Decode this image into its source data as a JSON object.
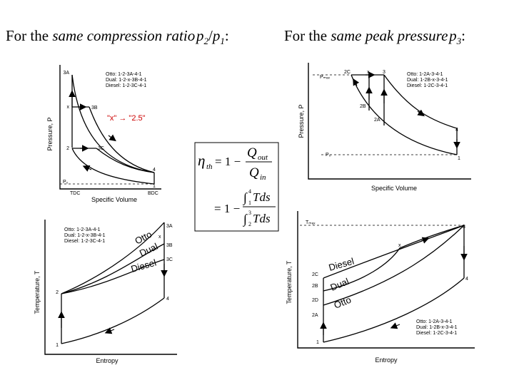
{
  "headings": {
    "left": {
      "prefix": "For the ",
      "italic": "same compression ratio",
      "var1": "p",
      "sub1": "2",
      "slash": "/",
      "var2": "p",
      "sub2": "1",
      "suffix": ":"
    },
    "right": {
      "prefix": "For the ",
      "italic": "same peak pressure",
      "var": "p",
      "sub": "3",
      "suffix": ":"
    }
  },
  "pv_compression": {
    "ylabel": "Pressure, P",
    "xlabel": "Specific Volume",
    "legend": [
      "Otto: 1-2-3A-4-1",
      "Dual: 1-2-x-3B-4-1",
      "Diesel: 1-2-3C-4-1"
    ],
    "annotation": "\"x\" → \"2.5\"",
    "points": {
      "p3A": "3A",
      "px": "x",
      "p3B": "3B",
      "p2": "2",
      "p3C": "3C",
      "p4": "4",
      "p1": "1"
    },
    "po": "P₀",
    "tdc": "TDC",
    "bdc": "BDC"
  },
  "ts_compression": {
    "ylabel": "Temperature, T",
    "xlabel": "Entropy",
    "legend": [
      "Otto: 1-2-3A-4-1",
      "Dual: 1-2-x-3B-4-1",
      "Diesel: 1-2-3C-4-1"
    ],
    "curve_labels": {
      "otto": "Otto",
      "dual": "Dual",
      "diesel": "Diesel"
    },
    "points": {
      "p3A": "3A",
      "px": "x",
      "p3B": "3B",
      "p3C": "3C",
      "p2": "2",
      "p4": "4",
      "p1": "1"
    }
  },
  "pv_peak": {
    "ylabel": "Pressure, P",
    "xlabel": "Specific Volume",
    "pmax": "Pₘₐₓ",
    "po": "P₀",
    "legend": [
      "Otto: 1-2A-3-4-1",
      "Dual: 1-2B-x-3-4-1",
      "Diesel: 1-2C-3-4-1"
    ],
    "points": {
      "p2C": "2C",
      "px": "x",
      "p3": "3",
      "p2B": "2B",
      "p2A": "2A",
      "p4": "4",
      "p1": "1"
    }
  },
  "ts_peak": {
    "ylabel": "Temperature, T",
    "xlabel": "Entropy",
    "tmax": "Tₘₐₓ",
    "legend": [
      "Otto: 1-2A-3-4-1",
      "Dual: 1-2B-x-3-4-1",
      "Diesel: 1-2C-3-4-1"
    ],
    "curve_labels": {
      "diesel": "Diesel",
      "dual": "Dual",
      "otto": "Otto"
    },
    "points": {
      "p3": "3",
      "px": "x",
      "p2C": "2C",
      "p2B": "2B",
      "p2D": "2D",
      "p2A": "2A",
      "p4": "4",
      "p1": "1"
    }
  },
  "efficiency": {
    "eta": "η",
    "eta_sub": "th",
    "equals_one_minus": "= 1 −",
    "q_out": "Q",
    "q_out_sub": "out",
    "q_in": "Q",
    "q_in_sub": "in",
    "int_symbol": "∫",
    "int1_lower": "1",
    "int1_upper": "4",
    "int2_lower": "2",
    "int2_upper": "3",
    "integrand": "Tds"
  }
}
